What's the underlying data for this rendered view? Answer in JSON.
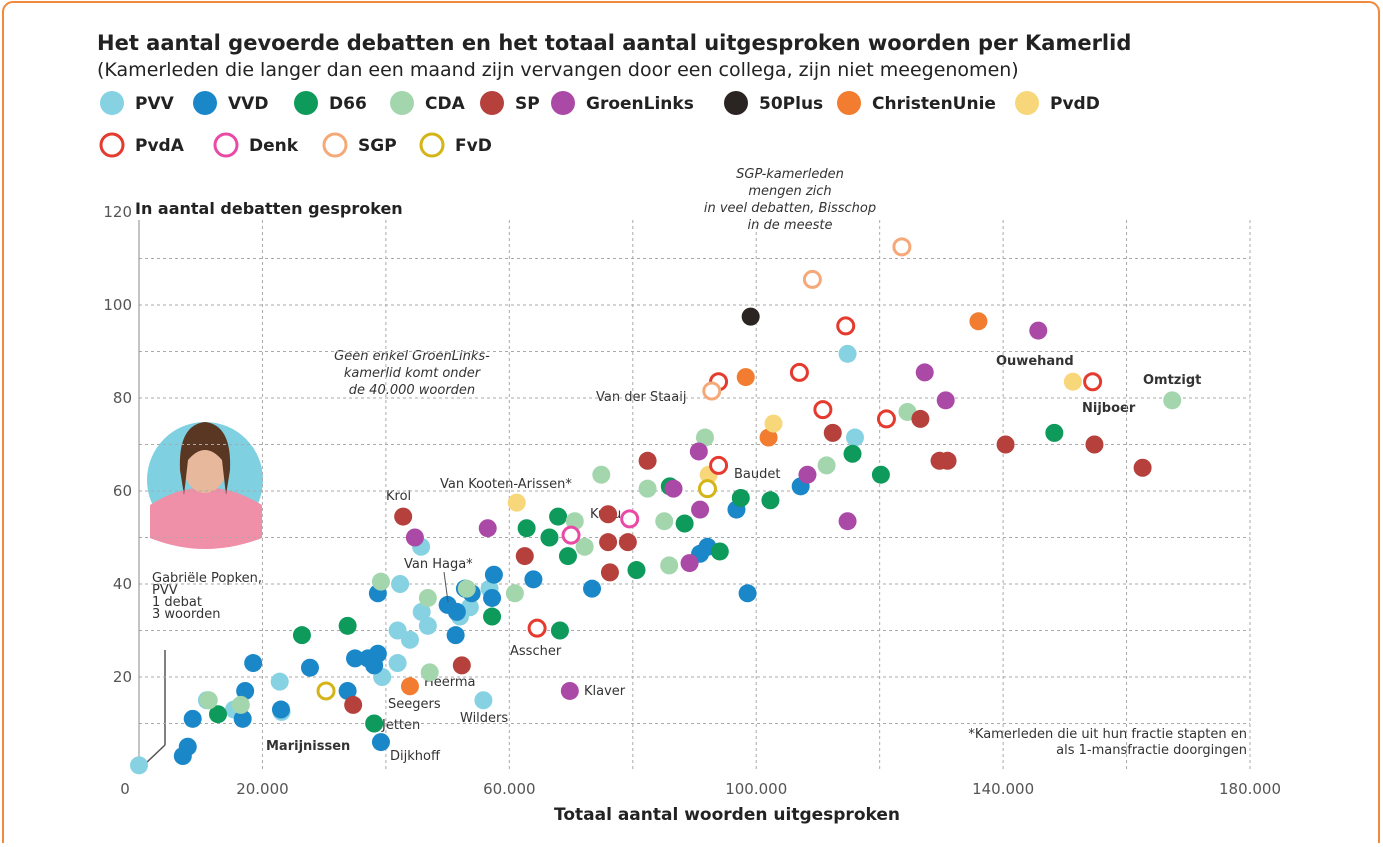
{
  "chart_data": {
    "type": "scatter",
    "title": "Het aantal gevoerde debatten en het totaal aantal uitgesproken woorden per Kamerlid",
    "subtitle": "(Kamerleden die langer dan een maand zijn vervangen door een collega, zijn niet meegenomen)",
    "xlabel": "Totaal aantal woorden uitgesproken",
    "ylabel": "In aantal debatten gesproken",
    "xlim": [
      0,
      180000
    ],
    "ylim": [
      0,
      120
    ],
    "xticks": [
      0,
      {
        "value": 20000,
        "label": "20.000"
      },
      {
        "value": 60000,
        "label": "60.000"
      },
      {
        "value": 100000,
        "label": "100.000"
      },
      {
        "value": 140000,
        "label": "140.000"
      },
      {
        "value": 180000,
        "label": "180.000"
      }
    ],
    "yticks": [
      20,
      40,
      60,
      80,
      100,
      120
    ],
    "xgrid": [
      20000,
      40000,
      60000,
      80000,
      100000,
      120000,
      140000,
      160000,
      180000
    ],
    "ygrid": [
      10,
      20,
      30,
      40,
      50,
      60,
      70,
      80,
      90,
      100,
      110
    ],
    "grid": true,
    "series": [
      {
        "name": "PVV",
        "color": "#86d2e2",
        "hollow": false,
        "x": [
          0,
          11000,
          22800,
          23100,
          39400,
          41900,
          41900,
          43900,
          46800,
          45800,
          42300,
          45700,
          52000,
          53600,
          55800,
          114800,
          116000,
          56800,
          15400
        ],
        "values": [
          1,
          15,
          19,
          12.5,
          20,
          23,
          30,
          28,
          31,
          34,
          40,
          48,
          33,
          35,
          15,
          89.5,
          71.5,
          39,
          13
        ]
      },
      {
        "name": "VVD",
        "color": "#1a87c9",
        "hollow": false,
        "x": [
          7100,
          7900,
          8700,
          17200,
          16800,
          18500,
          23000,
          27700,
          33800,
          35000,
          37100,
          38100,
          38700,
          39200,
          38700,
          50000,
          51500,
          51300,
          52800,
          53900,
          57500,
          57200,
          63900,
          73400,
          90900,
          92100,
          96800,
          98600,
          107200
        ],
        "values": [
          3,
          5,
          11,
          17,
          11,
          23,
          13,
          22,
          17,
          24,
          24,
          22.5,
          25,
          6,
          38,
          35.5,
          34,
          29,
          39,
          38,
          42,
          37,
          41,
          39,
          46.5,
          48,
          56,
          38,
          61
        ]
      },
      {
        "name": "D66",
        "color": "#0d9a5a",
        "hollow": false,
        "x": [
          12800,
          26400,
          33800,
          38100,
          57200,
          62800,
          67900,
          66500,
          69500,
          68200,
          80600,
          86000,
          88400,
          94100,
          97500,
          102300,
          115600,
          120200,
          148300
        ],
        "values": [
          12,
          29,
          31,
          10,
          33,
          52,
          54.5,
          50,
          46,
          30,
          43,
          61,
          53,
          47,
          58.5,
          58,
          68,
          63.5,
          72.5
        ]
      },
      {
        "name": "CDA",
        "color": "#a3d6ad",
        "hollow": false,
        "x": [
          11300,
          16500,
          39200,
          46800,
          47100,
          53100,
          60900,
          70600,
          72200,
          74900,
          82400,
          85100,
          85900,
          91700,
          111400,
          124500,
          167400
        ],
        "values": [
          15,
          14,
          40.5,
          37,
          21,
          39,
          38,
          53.5,
          48,
          63.5,
          60.5,
          53.5,
          44,
          71.5,
          65.5,
          77,
          79.5
        ]
      },
      {
        "name": "SP",
        "color": "#b5403c",
        "hollow": false,
        "x": [
          34700,
          42800,
          52300,
          62500,
          76000,
          76000,
          79200,
          76300,
          82400,
          112400,
          126600,
          129700,
          131000,
          140400,
          154800,
          162600
        ],
        "values": [
          14,
          54.5,
          22.5,
          46,
          55,
          49,
          49,
          42.5,
          66.5,
          72.5,
          75.5,
          66.5,
          66.5,
          70,
          70,
          65
        ]
      },
      {
        "name": "GroenLinks",
        "color": "#ab4aa6",
        "hollow": false,
        "x": [
          44700,
          56500,
          69800,
          86600,
          89200,
          90700,
          90900,
          108300,
          114800,
          127300,
          130700,
          145700
        ],
        "values": [
          50,
          52,
          17,
          60.5,
          44.5,
          68.5,
          56,
          63.5,
          53.5,
          85.5,
          79.5,
          94.5
        ]
      },
      {
        "name": "50Plus",
        "color": "#2a2422",
        "hollow": false,
        "x": [
          99100
        ],
        "values": [
          97.5
        ]
      },
      {
        "name": "ChristenUnie",
        "color": "#f27c2f",
        "hollow": false,
        "x": [
          43900,
          98300,
          102000,
          136000
        ],
        "values": [
          18,
          84.5,
          71.5,
          96.5
        ]
      },
      {
        "name": "PvdD",
        "color": "#f8d77a",
        "hollow": false,
        "x": [
          61200,
          92300,
          102800,
          151300
        ],
        "values": [
          57.5,
          63.5,
          74.5,
          83.5
        ]
      },
      {
        "name": "PvdA",
        "color": "#e53a2e",
        "hollow": true,
        "x": [
          64500,
          93900,
          93900,
          107000,
          110800,
          114500,
          121100,
          154500
        ],
        "values": [
          30.5,
          83.5,
          65.5,
          85.5,
          77.5,
          95.5,
          75.5,
          83.5
        ]
      },
      {
        "name": "Denk",
        "color": "#e94aa5",
        "hollow": true,
        "x": [
          70000,
          79500
        ],
        "values": [
          50.5,
          54
        ]
      },
      {
        "name": "SGP",
        "color": "#f5a878",
        "hollow": true,
        "x": [
          92800,
          109100,
          123600
        ],
        "values": [
          81.5,
          105.5,
          112.5
        ]
      },
      {
        "name": "FvD",
        "color": "#d4b416",
        "hollow": true,
        "x": [
          30300,
          92100
        ],
        "values": [
          17,
          60.5
        ]
      }
    ],
    "annotations": [
      "Krol",
      "Van Haga*",
      "Van Kooten-Arissen*",
      "Kuzu",
      "Baudet",
      "Van der Staaij",
      "Ouwehand",
      "Omtzigt",
      "Nijboer",
      "Asscher",
      "Klaver",
      "Wilders",
      "Heerma",
      "Seegers",
      "Jetten",
      "Marijnissen",
      "Dijkhoff"
    ],
    "notes": {
      "sgp": [
        "SGP-kamerleden",
        "mengen zich",
        "in veel debatten, Bisschop",
        "in de meeste"
      ],
      "groenlinks": [
        "Geen enkel GroenLinks-",
        "kamerlid komt onder",
        "de 40.000 woorden"
      ],
      "popken": [
        "Gabriële Popken,",
        "PVV",
        "1 debat",
        "3 woorden"
      ],
      "footnote": [
        "*Kamerleden die uit hun fractie stapten en",
        "als 1-mansfractie doorgingen"
      ]
    }
  }
}
